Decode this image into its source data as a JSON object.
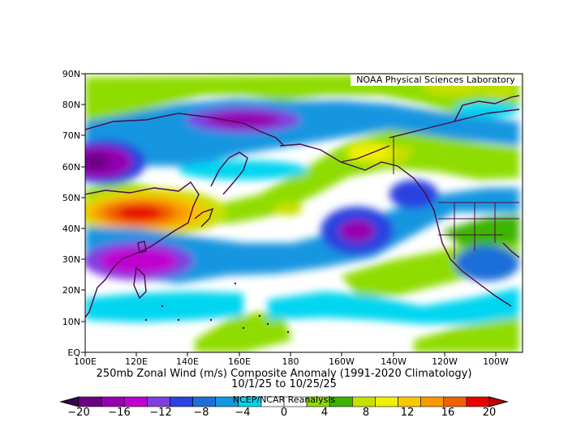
{
  "lab_label": "NOAA Physical Sciences Laboratory",
  "caption": {
    "line1": "250mb Zonal Wind (m/s) Composite Anomaly (1991-2020 Climatology)",
    "line2": "10/1/25  to 10/25/25",
    "credit": "NCEP/NCAR Reanalysis"
  },
  "lat_labels": [
    "90N",
    "80N",
    "70N",
    "60N",
    "50N",
    "40N",
    "30N",
    "20N",
    "10N",
    "EQ"
  ],
  "lon_labels": [
    "100E",
    "120E",
    "140E",
    "160E",
    "180",
    "160W",
    "140W",
    "120W",
    "100W"
  ],
  "colorbar": {
    "ticks": [
      "−20",
      "−16",
      "−12",
      "−8",
      "−4",
      "0",
      "4",
      "8",
      "12",
      "16",
      "20"
    ],
    "colors": [
      "#6a0080",
      "#9400b0",
      "#c000d0",
      "#7f3fe0",
      "#2a43e0",
      "#1e6ed8",
      "#1596e0",
      "#00d6f0",
      "#ffffff",
      "#ffffff",
      "#8fdc00",
      "#3cb400",
      "#c8e000",
      "#f0f000",
      "#f7c800",
      "#f79a00",
      "#f06000",
      "#e80000"
    ]
  }
}
